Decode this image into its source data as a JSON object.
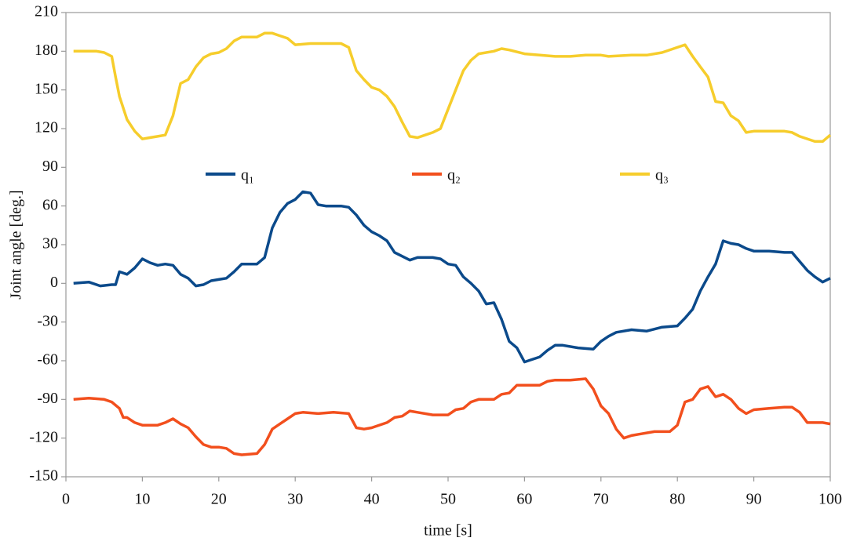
{
  "chart_data": {
    "type": "line",
    "xlabel": "time [s]",
    "ylabel": "Joint angle [deg.]",
    "xlim": [
      0,
      100
    ],
    "xticks": [
      0,
      10,
      20,
      30,
      40,
      50,
      60,
      70,
      80,
      90,
      100
    ],
    "ylim": [
      -150,
      210
    ],
    "yticks": [
      -150,
      -120,
      -90,
      -60,
      -30,
      0,
      30,
      60,
      90,
      120,
      150,
      180,
      210
    ],
    "grid": false,
    "legend": "center",
    "series": [
      {
        "name": "q₁",
        "color": "#0b4a8b",
        "x": [
          1,
          3,
          4.5,
          6,
          6.5,
          7,
          8,
          9,
          10,
          11,
          12,
          13,
          14,
          15,
          16,
          17,
          18,
          19,
          20,
          21,
          22,
          23,
          24,
          25,
          26,
          27,
          28,
          29,
          30,
          31,
          32,
          33,
          34,
          36,
          37,
          38,
          39,
          40,
          41,
          42,
          43,
          44,
          45,
          46,
          48,
          49,
          50,
          51,
          52,
          53,
          54,
          55,
          56,
          57,
          58,
          59,
          60,
          61,
          62,
          63,
          64,
          65,
          67,
          69,
          70,
          71,
          72,
          74,
          76,
          78,
          80,
          81,
          82,
          83,
          84,
          85,
          86,
          87,
          88,
          89,
          90,
          92,
          94,
          95,
          96,
          97,
          98,
          99,
          100
        ],
        "values": [
          0,
          1,
          -2,
          -1,
          -1,
          9,
          7,
          12,
          19,
          16,
          14,
          15,
          14,
          7,
          4,
          -2,
          -1,
          2,
          3,
          4,
          9,
          15,
          15,
          15,
          20,
          43,
          55,
          62,
          65,
          71,
          70,
          61,
          60,
          60,
          59,
          53,
          45,
          40,
          37,
          33,
          24,
          21,
          18,
          20,
          20,
          19,
          15,
          14,
          5,
          0,
          -6,
          -16,
          -15,
          -28,
          -45,
          -50,
          -61,
          -59,
          -57,
          -52,
          -48,
          -48,
          -50,
          -51,
          -45,
          -41,
          -38,
          -36,
          -37,
          -34,
          -33,
          -27,
          -20,
          -6,
          5,
          15,
          33,
          31,
          30,
          27,
          25,
          25,
          24,
          24,
          17,
          10,
          5,
          1,
          4
        ]
      },
      {
        "name": "q₂",
        "color": "#f24f1d",
        "x": [
          1,
          3,
          5,
          6,
          7,
          7.5,
          8,
          9,
          10,
          12,
          13,
          14,
          15,
          16,
          17,
          18,
          19,
          20,
          21,
          22,
          23,
          25,
          26,
          27,
          28,
          29,
          30,
          31,
          33,
          35,
          37,
          38,
          39,
          40,
          42,
          43,
          44,
          45,
          46,
          48,
          50,
          51,
          52,
          53,
          54,
          56,
          57,
          58,
          59,
          60,
          62,
          63,
          64,
          66,
          68,
          69,
          70,
          71,
          72,
          73,
          74,
          75,
          77,
          79,
          80,
          81,
          82,
          83,
          84,
          85,
          86,
          87,
          88,
          89,
          90,
          92,
          94,
          95,
          96,
          97,
          99,
          100
        ],
        "values": [
          -90,
          -89,
          -90,
          -92,
          -97,
          -104,
          -104,
          -108,
          -110,
          -110,
          -108,
          -105,
          -109,
          -112,
          -119,
          -125,
          -127,
          -127,
          -128,
          -132,
          -133,
          -132,
          -125,
          -113,
          -109,
          -105,
          -101,
          -100,
          -101,
          -100,
          -101,
          -112,
          -113,
          -112,
          -108,
          -104,
          -103,
          -99,
          -100,
          -102,
          -102,
          -98,
          -97,
          -92,
          -90,
          -90,
          -86,
          -85,
          -79,
          -79,
          -79,
          -76,
          -75,
          -75,
          -74,
          -82,
          -95,
          -101,
          -113,
          -120,
          -118,
          -117,
          -115,
          -115,
          -110,
          -92,
          -90,
          -82,
          -80,
          -88,
          -86,
          -90,
          -97,
          -101,
          -98,
          -97,
          -96,
          -96,
          -100,
          -108,
          -108,
          -109
        ]
      },
      {
        "name": "q₃",
        "color": "#f6cd2c",
        "x": [
          1,
          4,
          5,
          6,
          6.5,
          7,
          8,
          9,
          10,
          11,
          12,
          13,
          14,
          15,
          16,
          17,
          18,
          19,
          20,
          21,
          22,
          23,
          25,
          26,
          27,
          28,
          29,
          30,
          32,
          34,
          36,
          37,
          38,
          39,
          40,
          41,
          42,
          43,
          44,
          45,
          46,
          47,
          48,
          49,
          50,
          51,
          52,
          53,
          54,
          56,
          57,
          58,
          60,
          62,
          64,
          66,
          68,
          70,
          71,
          74,
          76,
          78,
          80,
          81,
          82,
          83,
          84,
          85,
          86,
          87,
          88,
          89,
          90,
          94,
          95,
          96,
          98,
          99,
          100
        ],
        "values": [
          180,
          180,
          179,
          176,
          160,
          145,
          127,
          118,
          112,
          113,
          114,
          115,
          130,
          155,
          158,
          168,
          175,
          178,
          179,
          182,
          188,
          191,
          191,
          194,
          194,
          192,
          190,
          185,
          186,
          186,
          186,
          183,
          165,
          158,
          152,
          150,
          145,
          137,
          125,
          114,
          113,
          115,
          117,
          120,
          135,
          150,
          165,
          173,
          178,
          180,
          182,
          181,
          178,
          177,
          176,
          176,
          177,
          177,
          176,
          177,
          177,
          179,
          183,
          185,
          176,
          168,
          160,
          141,
          140,
          130,
          126,
          117,
          118,
          118,
          117,
          114,
          110,
          110,
          115
        ]
      }
    ]
  }
}
